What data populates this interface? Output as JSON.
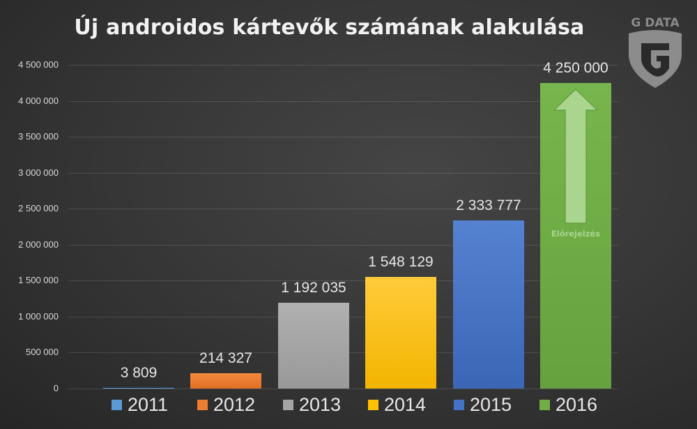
{
  "chart_data": {
    "type": "bar",
    "title": "Új androidos kártevők számának alakulása",
    "xlabel": "",
    "ylabel": "",
    "ylim": [
      0,
      4500000
    ],
    "grid": true,
    "legend_position": "bottom",
    "y_ticks": [
      "0",
      "500 000",
      "1 000 000",
      "1 500 000",
      "2 000 000",
      "2 500 000",
      "3 000 000",
      "3 500 000",
      "4 000 000",
      "4 500 000"
    ],
    "categories": [
      "2011",
      "2012",
      "2013",
      "2014",
      "2015",
      "2016"
    ],
    "values": [
      3809,
      214327,
      1192035,
      1548129,
      2333777,
      4250000
    ],
    "value_labels": [
      "3 809",
      "214 327",
      "1 192 035",
      "1 548 129",
      "2 333 777",
      "4 250 000"
    ],
    "colors": [
      "#5b9bd5",
      "#ed7d31",
      "#a5a5a5",
      "#ffc000",
      "#4472c4",
      "#70ad47"
    ],
    "annotations": [
      {
        "category": "2016",
        "type": "up-arrow",
        "text": "Előrejelzés"
      }
    ]
  },
  "branding": {
    "logo_text": "G DATA"
  }
}
